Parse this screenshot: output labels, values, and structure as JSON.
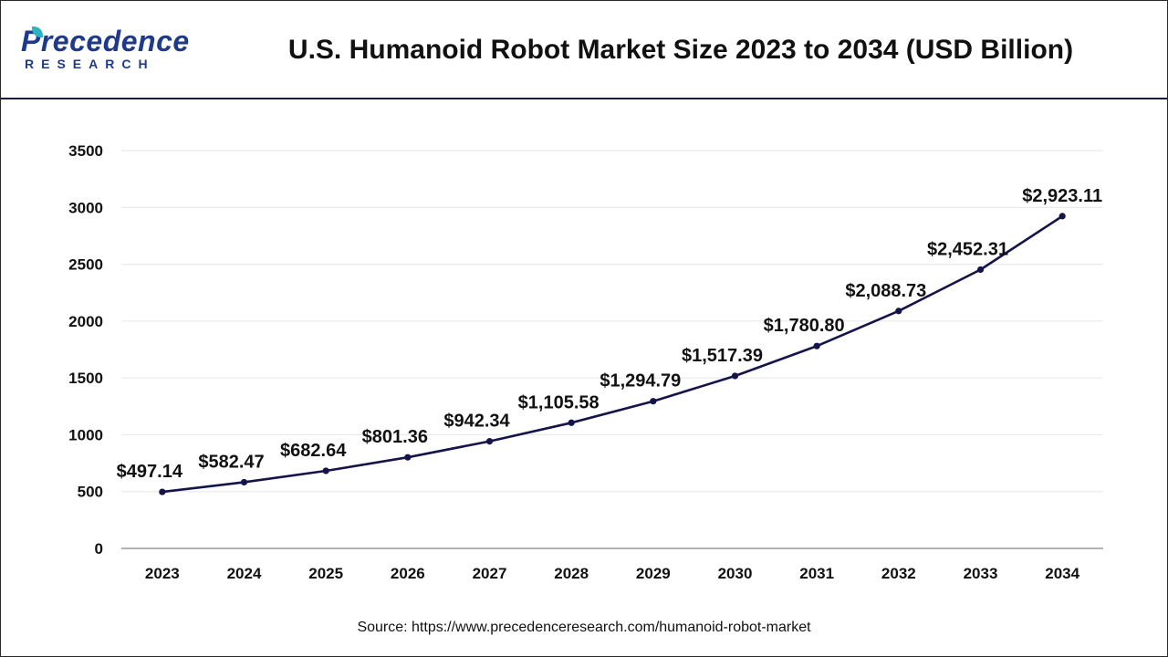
{
  "header": {
    "logo_word": "Precedence",
    "logo_sub": "RESEARCH",
    "title": "U.S. Humanoid Robot Market Size 2023 to 2034 (USD Billion)"
  },
  "footer": {
    "source": "Source: https://www.precedenceresearch.com/humanoid-robot-market"
  },
  "colors": {
    "line": "#14144a",
    "grid": "#e6e6e6",
    "axis": "#999999",
    "brand": "#1f3a8a"
  },
  "chart_data": {
    "type": "line",
    "title": "U.S. Humanoid Robot Market Size 2023 to 2034 (USD Billion)",
    "xlabel": "",
    "ylabel": "",
    "ylim": [
      0,
      3500
    ],
    "yticks": [
      0,
      500,
      1000,
      1500,
      2000,
      2500,
      3000,
      3500
    ],
    "grid": true,
    "categories": [
      "2023",
      "2024",
      "2025",
      "2026",
      "2027",
      "2028",
      "2029",
      "2030",
      "2031",
      "2032",
      "2033",
      "2034"
    ],
    "values": [
      497.14,
      582.47,
      682.64,
      801.36,
      942.34,
      1105.58,
      1294.79,
      1517.39,
      1780.8,
      2088.73,
      2452.31,
      2923.11
    ],
    "data_labels": [
      "$497.14",
      "$582.47",
      "$682.64",
      "$801.36",
      "$942.34",
      "$1,105.58",
      "$1,294.79",
      "$1,517.39",
      "$1,780.80",
      "$2,088.73",
      "$2,452.31",
      "$2,923.11"
    ]
  }
}
